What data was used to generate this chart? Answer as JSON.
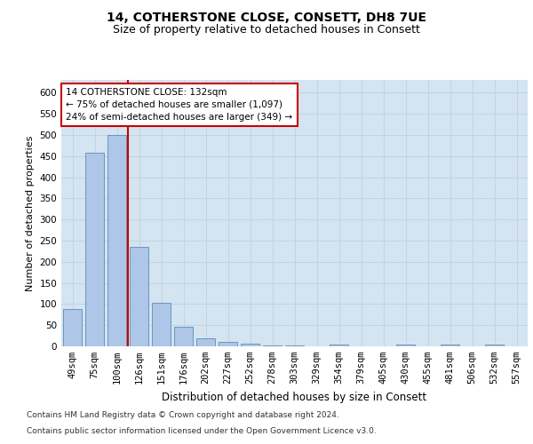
{
  "title": "14, COTHERSTONE CLOSE, CONSETT, DH8 7UE",
  "subtitle": "Size of property relative to detached houses in Consett",
  "xlabel": "Distribution of detached houses by size in Consett",
  "ylabel": "Number of detached properties",
  "categories": [
    "49sqm",
    "75sqm",
    "100sqm",
    "126sqm",
    "151sqm",
    "176sqm",
    "202sqm",
    "227sqm",
    "252sqm",
    "278sqm",
    "303sqm",
    "329sqm",
    "354sqm",
    "379sqm",
    "405sqm",
    "430sqm",
    "455sqm",
    "481sqm",
    "506sqm",
    "532sqm",
    "557sqm"
  ],
  "values": [
    88,
    457,
    500,
    235,
    103,
    47,
    18,
    11,
    7,
    3,
    3,
    0,
    5,
    0,
    0,
    5,
    0,
    5,
    0,
    5,
    0
  ],
  "bar_color": "#aec6e8",
  "bar_edge_color": "#5b8db8",
  "red_line_x": 2.5,
  "annotation_line1": "14 COTHERSTONE CLOSE: 132sqm",
  "annotation_line2": "← 75% of detached houses are smaller (1,097)",
  "annotation_line3": "24% of semi-detached houses are larger (349) →",
  "annotation_box_color": "#ffffff",
  "annotation_box_edge_color": "#cc0000",
  "ylim": [
    0,
    630
  ],
  "yticks": [
    0,
    50,
    100,
    150,
    200,
    250,
    300,
    350,
    400,
    450,
    500,
    550,
    600
  ],
  "grid_color": "#c0d4e4",
  "plot_background": "#d4e4f0",
  "footer_line1": "Contains HM Land Registry data © Crown copyright and database right 2024.",
  "footer_line2": "Contains public sector information licensed under the Open Government Licence v3.0.",
  "title_fontsize": 10,
  "subtitle_fontsize": 9,
  "xlabel_fontsize": 8.5,
  "ylabel_fontsize": 8,
  "tick_fontsize": 7.5,
  "annot_fontsize": 7.5,
  "footer_fontsize": 6.5
}
